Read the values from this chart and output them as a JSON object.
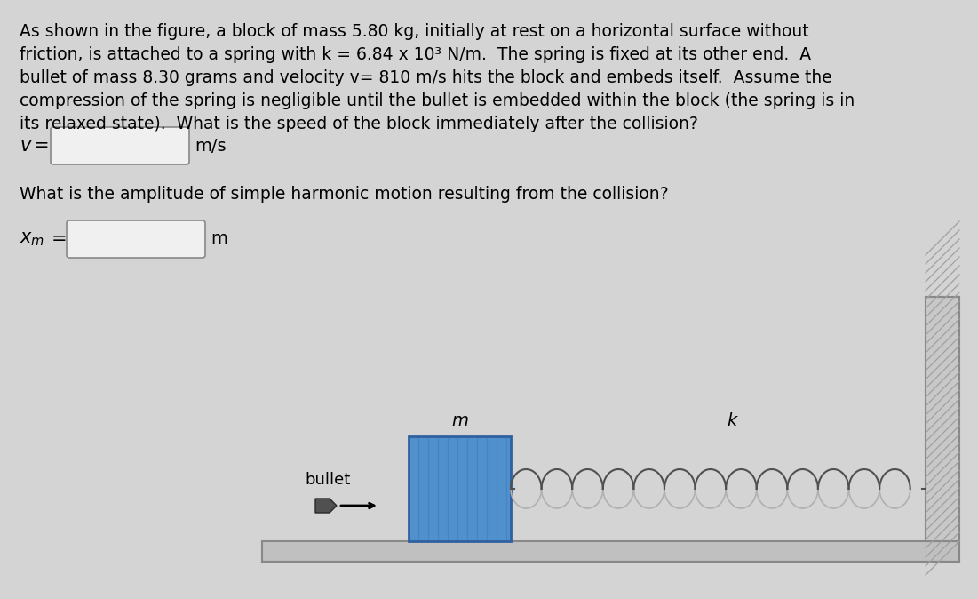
{
  "background_color": "#d4d4d4",
  "text_color": "#000000",
  "line1": "As shown in the figure, a block of mass 5.80 kg, initially at rest on a horizontal surface without",
  "line2": "friction, is attached to a spring with k = 6.84 x 10³ N/m.  The spring is fixed at its other end.  A",
  "line3": "bullet of mass 8.30 grams and velocity v= 810 m/s hits the block and embeds itself.  Assume the",
  "line4": "compression of the spring is negligible until the bullet is embedded within the block (the spring is in",
  "line5": "its relaxed state).  What is the speed of the block immediately after the collision?",
  "v_label_italic": "v",
  "v_eq": " =",
  "v_unit": "m/s",
  "q2_text": "What is the amplitude of simple harmonic motion resulting from the collision?",
  "xm_unit": "m",
  "input_box_color": "#f0f0f0",
  "input_box_edge_color": "#888888",
  "block_color_face": "#5090cc",
  "block_color_dark": "#3060a0",
  "block_stripe_color": "#4080bb",
  "wall_color": "#c8c8c8",
  "wall_stripe_color": "#b0b0b0",
  "floor_color": "#c0c0c0",
  "spring_color": "#505050",
  "bullet_color": "#505050",
  "arrow_color": "#000000",
  "label_m": "m",
  "label_k": "k",
  "label_bullet": "bullet",
  "font_size_body": 13.5,
  "font_size_label": 14,
  "font_size_diagram": 13
}
